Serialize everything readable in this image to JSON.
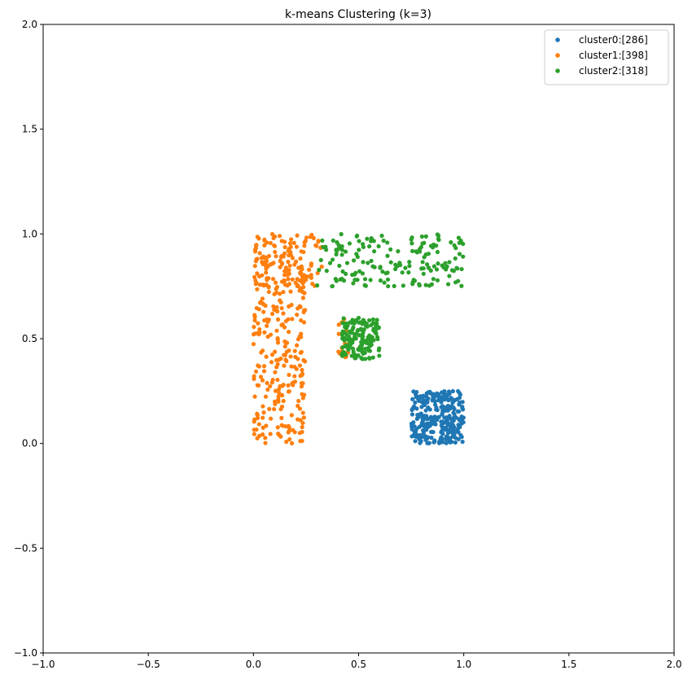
{
  "chart_data": {
    "type": "scatter",
    "title": "k-means Clustering (k=3)",
    "xlabel": "",
    "ylabel": "",
    "xlim": [
      -1.0,
      2.0
    ],
    "ylim": [
      -1.0,
      2.0
    ],
    "xticks": [
      -1.0,
      -0.5,
      0.0,
      0.5,
      1.0,
      1.5,
      2.0
    ],
    "yticks": [
      -1.0,
      -0.5,
      0.0,
      0.5,
      1.0,
      1.5,
      2.0
    ],
    "xtick_labels": [
      "−1.0",
      "−0.5",
      "0.0",
      "0.5",
      "1.0",
      "1.5",
      "2.0"
    ],
    "ytick_labels": [
      "−1.0",
      "−0.5",
      "0.0",
      "0.5",
      "1.0",
      "1.5",
      "2.0"
    ],
    "grid": false,
    "legend_position": "top-right",
    "series": [
      {
        "name": "cluster0:[286]",
        "color": "#1f77b4",
        "count": 286,
        "regions": [
          {
            "x": [
              0.75,
              1.0
            ],
            "y": [
              0.0,
              0.25
            ],
            "n": 286
          }
        ]
      },
      {
        "name": "cluster1:[398]",
        "color": "#ff7f0e",
        "count": 398,
        "regions": [
          {
            "x": [
              0.0,
              0.25
            ],
            "y": [
              0.0,
              1.0
            ],
            "n": 300
          },
          {
            "x": [
              0.0,
              0.33
            ],
            "y": [
              0.75,
              1.0
            ],
            "n": 80
          },
          {
            "x": [
              0.4,
              0.45
            ],
            "y": [
              0.4,
              0.6
            ],
            "n": 18
          }
        ]
      },
      {
        "name": "cluster2:[318]",
        "color": "#2ca02c",
        "count": 318,
        "regions": [
          {
            "x": [
              0.3,
              1.0
            ],
            "y": [
              0.75,
              1.0
            ],
            "n": 170
          },
          {
            "x": [
              0.42,
              0.6
            ],
            "y": [
              0.4,
              0.6
            ],
            "n": 148
          }
        ]
      }
    ]
  }
}
